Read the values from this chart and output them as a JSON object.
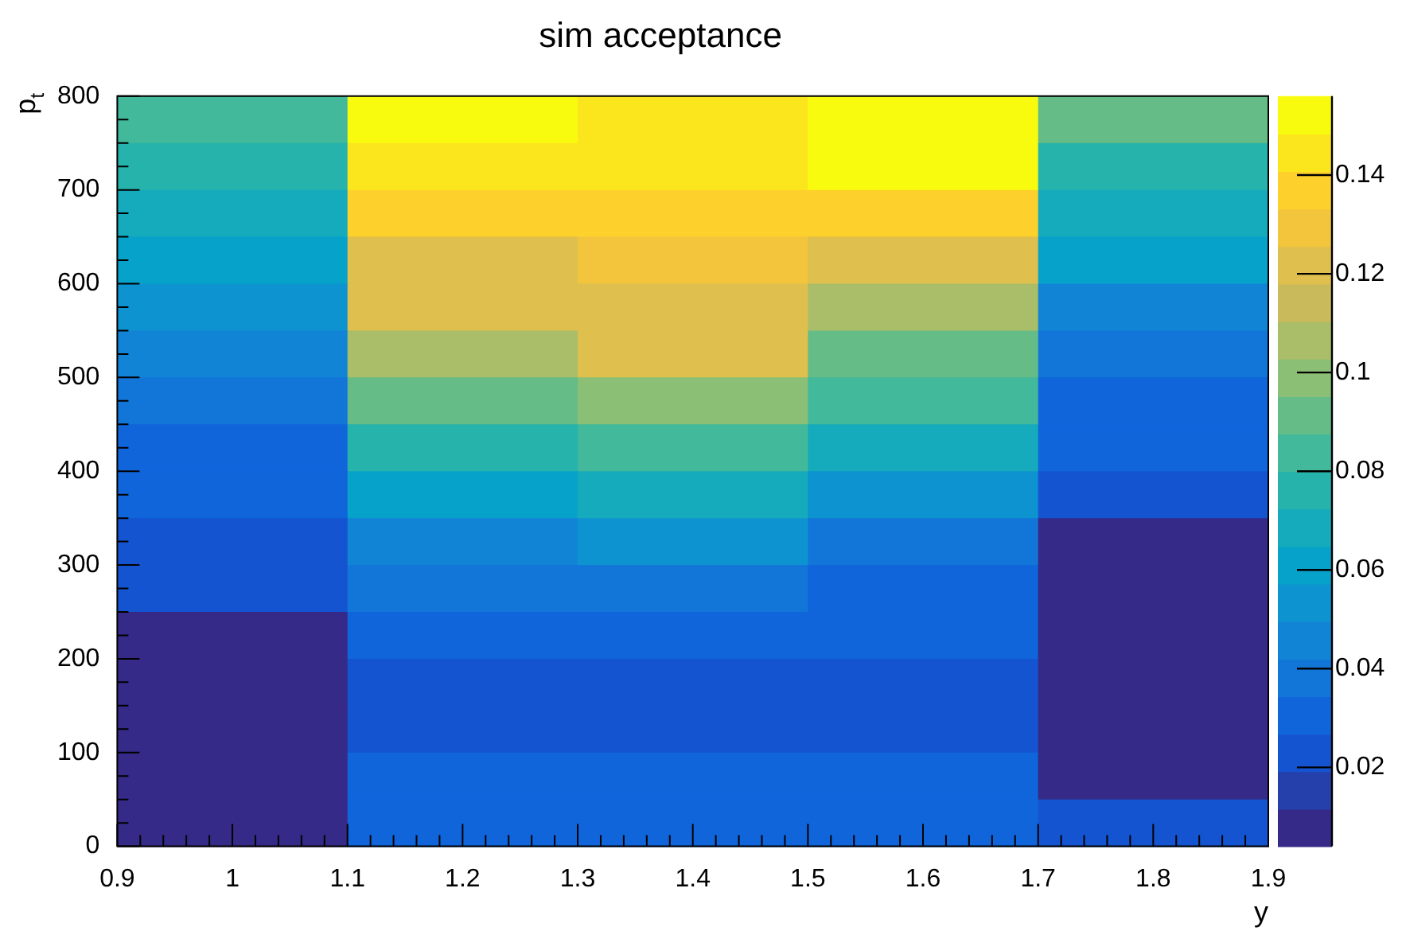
{
  "chart_data": {
    "type": "heatmap",
    "title": "sim acceptance",
    "xlabel": "y",
    "ylabel": "p$_{t}$",
    "x": [
      1,
      1.2,
      1.4,
      1.6,
      1.8
    ],
    "y": [
      775,
      725,
      675,
      625,
      575,
      525,
      475,
      425,
      375,
      325,
      275,
      225,
      175,
      125,
      75,
      25
    ],
    "xlim": [
      0.9,
      1.9
    ],
    "xticks": [
      {
        "value": 0.9,
        "label": "0.9"
      },
      1,
      1.1,
      1.2,
      1.3,
      1.4,
      1.5,
      1.6,
      1.7,
      1.8,
      1.9
    ],
    "ylim": [
      0,
      800
    ],
    "yticks": [
      0,
      100,
      200,
      300,
      400,
      500,
      600,
      700,
      800
    ],
    "clim": [
      0.004,
      0.156
    ],
    "cticks": [
      0.02,
      0.04,
      0.06,
      0.08,
      0.1,
      0.12,
      0.14
    ],
    "cells": [
      [
        0.085,
        0.152,
        0.145,
        0.152,
        0.095
      ],
      [
        0.075,
        0.145,
        0.145,
        0.152,
        0.075
      ],
      [
        0.068,
        0.137,
        0.137,
        0.137,
        0.068
      ],
      [
        0.06,
        0.125,
        0.13,
        0.125,
        0.06
      ],
      [
        0.055,
        0.118,
        0.125,
        0.11,
        0.047
      ],
      [
        0.047,
        0.11,
        0.118,
        0.095,
        0.04
      ],
      [
        0.04,
        0.095,
        0.102,
        0.085,
        0.033
      ],
      [
        0.033,
        0.075,
        0.085,
        0.068,
        0.027
      ],
      [
        0.027,
        0.06,
        0.068,
        0.055,
        0.02
      ],
      [
        0.02,
        0.047,
        0.055,
        0.04,
        0.008
      ],
      [
        0.02,
        0.037,
        0.04,
        0.027,
        0.008
      ],
      [
        0.008,
        0.027,
        0.027,
        0.027,
        0.008
      ],
      [
        0.008,
        0.02,
        0.02,
        0.02,
        0.008
      ],
      [
        0.008,
        0.02,
        0.02,
        0.02,
        0.008
      ],
      [
        0.008,
        0.027,
        0.027,
        0.027,
        0.008
      ],
      [
        0.008,
        0.027,
        0.033,
        0.033,
        0.02
      ]
    ]
  }
}
